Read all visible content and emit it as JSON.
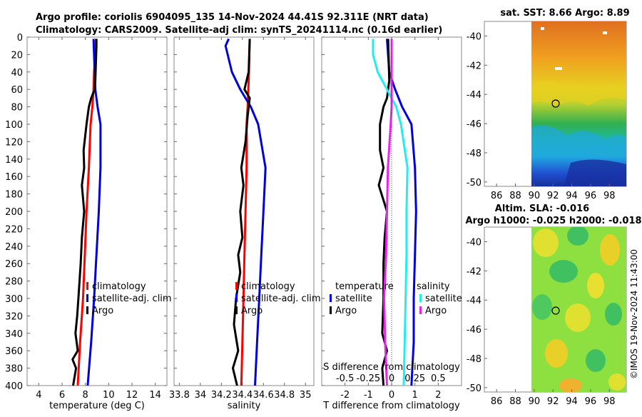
{
  "header": {
    "title_line1": "Argo profile: coriolis 6904095_135 14-Nov-2024 44.41S 92.311E (NRT data)",
    "title_line2": "Climatology: CARS2009. Satellite-adj clim: synTS_20241114.nc (0.16d earlier)"
  },
  "watermark": "©IMOS 19-Nov-2024 11:43:00",
  "colors": {
    "argo": "#000000",
    "satellite": "#0000dd",
    "climatology": "#ff0000",
    "salinity_diff": "#ee22ee",
    "temp_diff": "#22eeee"
  },
  "map_labels": {
    "sst_title": "sat. SST: 8.66 Argo: 8.89",
    "sla_title_line1": "Altim. SLA: -0.016",
    "sla_title_line2": "Argo h1000: -0.025 h2000: -0.018",
    "lat_ticks": [
      "-40",
      "-42",
      "-44",
      "-46",
      "-48",
      "-50"
    ],
    "lon_ticks": [
      "86",
      "88",
      "90",
      "92",
      "94",
      "96",
      "98"
    ]
  },
  "chart_data": [
    {
      "type": "line",
      "id": "temperature",
      "xlabel": "temperature (deg C)",
      "ylabel": "",
      "xlim": [
        3,
        15
      ],
      "ylim": [
        400,
        0
      ],
      "xticks": [
        "4",
        "6",
        "8",
        "10",
        "12",
        "14"
      ],
      "yticks": [
        "0",
        "20",
        "40",
        "60",
        "80",
        "100",
        "120",
        "140",
        "160",
        "180",
        "200",
        "220",
        "240",
        "260",
        "280",
        "300",
        "320",
        "340",
        "360",
        "380",
        "400"
      ],
      "legend": [
        "climatology",
        "satellite-adj. clim",
        "Argo"
      ],
      "series": [
        {
          "name": "climatology",
          "color": "#ff0000",
          "depth": [
            2,
            20,
            40,
            60,
            80,
            100,
            150,
            200,
            250,
            300,
            350,
            400
          ],
          "values": [
            8.9,
            8.85,
            8.75,
            8.7,
            8.6,
            8.45,
            8.3,
            8.1,
            7.95,
            7.8,
            7.55,
            7.35
          ]
        },
        {
          "name": "satellite-adj. clim",
          "color": "#0000dd",
          "depth": [
            2,
            20,
            40,
            60,
            80,
            100,
            150,
            200,
            250,
            300,
            350,
            400
          ],
          "values": [
            8.7,
            8.75,
            8.8,
            8.85,
            9.05,
            9.3,
            9.3,
            9.15,
            8.95,
            8.75,
            8.5,
            8.2
          ]
        },
        {
          "name": "Argo",
          "color": "#000000",
          "depth": [
            2,
            10,
            30,
            50,
            60,
            70,
            80,
            100,
            130,
            150,
            170,
            200,
            230,
            260,
            280,
            300,
            320,
            340,
            360,
            370,
            380,
            400
          ],
          "values": [
            8.95,
            8.95,
            8.9,
            8.85,
            8.8,
            8.5,
            8.3,
            8.1,
            7.85,
            7.9,
            7.7,
            7.9,
            7.7,
            7.6,
            7.5,
            7.4,
            7.3,
            7.15,
            7.35,
            6.9,
            7.2,
            6.95
          ]
        }
      ]
    },
    {
      "type": "line",
      "id": "salinity",
      "xlabel": "salinity",
      "xlim": [
        33.75,
        35.08
      ],
      "ylim": [
        400,
        0
      ],
      "xticks": [
        "33.8",
        "34",
        "34.2",
        "34.4",
        "34.6",
        "34.8",
        "35"
      ],
      "legend": [
        "climatology",
        "satellite-adj. clim",
        "Argo"
      ],
      "series": [
        {
          "name": "climatology",
          "color": "#ff0000",
          "depth": [
            2,
            50,
            80,
            100,
            150,
            200,
            250,
            300,
            350,
            400
          ],
          "values": [
            34.47,
            34.46,
            34.45,
            34.44,
            34.44,
            34.43,
            34.42,
            34.41,
            34.4,
            34.39
          ]
        },
        {
          "name": "satellite-adj. clim",
          "color": "#0000dd",
          "depth": [
            2,
            10,
            40,
            60,
            80,
            100,
            150,
            200,
            250,
            300,
            350,
            400
          ],
          "values": [
            34.27,
            34.24,
            34.3,
            34.38,
            34.48,
            34.55,
            34.62,
            34.6,
            34.58,
            34.56,
            34.54,
            34.52
          ]
        },
        {
          "name": "Argo",
          "color": "#000000",
          "depth": [
            2,
            40,
            60,
            70,
            90,
            120,
            150,
            170,
            200,
            230,
            250,
            270,
            300,
            330,
            360,
            380,
            400
          ],
          "values": [
            34.47,
            34.46,
            34.42,
            34.47,
            34.45,
            34.43,
            34.39,
            34.41,
            34.38,
            34.4,
            34.36,
            34.38,
            34.34,
            34.32,
            34.36,
            34.31,
            34.35
          ]
        }
      ]
    },
    {
      "type": "line",
      "id": "difference",
      "xlabel": "T difference from climatology",
      "top_xlabel": "S difference from climatology",
      "xlim": [
        -3,
        3
      ],
      "ylim": [
        400,
        0
      ],
      "xticks": [
        "-2",
        "-1",
        "0",
        "1",
        "2"
      ],
      "top_xticks": [
        "-0.5",
        "-0.25",
        "0",
        "0.25",
        "0.5"
      ],
      "legend_left_title": "temperature",
      "legend_right_title": "salinity",
      "legend_left": [
        "satellite",
        "Argo"
      ],
      "legend_right": [
        "satellite",
        "Argo"
      ],
      "series": [
        {
          "name": "temperature satellite",
          "color": "#0000dd",
          "depth": [
            2,
            40,
            60,
            80,
            100,
            150,
            200,
            250,
            300,
            350,
            400
          ],
          "values": [
            -0.2,
            -0.1,
            0.15,
            0.45,
            0.85,
            1.0,
            1.05,
            1.0,
            0.95,
            0.95,
            0.85
          ]
        },
        {
          "name": "temperature Argo",
          "color": "#000000",
          "depth": [
            2,
            50,
            70,
            80,
            100,
            130,
            150,
            170,
            200,
            230,
            260,
            300,
            340,
            360,
            380,
            400
          ],
          "values": [
            -0.15,
            -0.1,
            -0.2,
            -0.35,
            -0.5,
            -0.5,
            -0.35,
            -0.55,
            -0.2,
            -0.3,
            -0.35,
            -0.35,
            -0.4,
            -0.2,
            -0.4,
            -0.35
          ]
        },
        {
          "name": "salinity satellite",
          "color": "#22eeee",
          "depth": [
            2,
            20,
            40,
            60,
            80,
            100,
            150,
            200,
            250,
            300,
            350,
            400
          ],
          "values": [
            -0.2,
            -0.2,
            -0.15,
            -0.05,
            0.05,
            0.1,
            0.17,
            0.16,
            0.16,
            0.15,
            0.14,
            0.13
          ]
        },
        {
          "name": "salinity Argo",
          "color": "#ee22ee",
          "depth": [
            2,
            60,
            80,
            100,
            150,
            200,
            250,
            300,
            350,
            400
          ],
          "values": [
            0.0,
            0.0,
            0.0,
            -0.01,
            -0.04,
            -0.05,
            -0.06,
            -0.08,
            -0.07,
            -0.05
          ]
        }
      ]
    }
  ]
}
